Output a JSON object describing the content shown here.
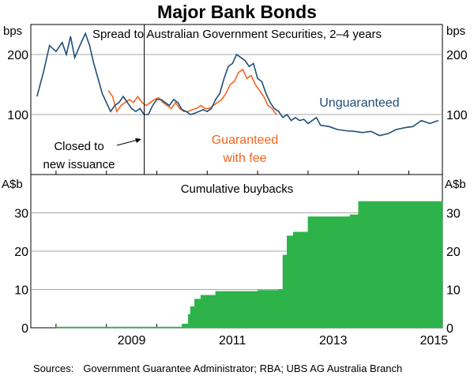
{
  "title": "Major Bank Bonds",
  "sources": {
    "label": "Sources:",
    "text": "Government Guarantee Administrator; RBA; UBS AG Australia Branch"
  },
  "colors": {
    "unguaranteed": "#1f4e79",
    "guaranteed": "#f26522",
    "buybacks": "#2db34a"
  },
  "chart_data": [
    {
      "type": "line",
      "title": "Spread to Australian Government Securities, 2–4 years",
      "ylabel": "bps",
      "ylim": [
        0,
        250
      ],
      "yticks": [
        100,
        200
      ],
      "xlim": [
        "2007-07",
        "2015-09"
      ],
      "grid": true,
      "annotation": {
        "text_line1": "Closed to",
        "text_line2": "new issuance",
        "date": "2009-10"
      },
      "series": [
        {
          "name": "Unguaranteed",
          "label_line1": "Unguaranteed",
          "label_line2": "",
          "color_key": "unguaranteed",
          "points": [
            [
              "2007-08-15",
              130
            ],
            [
              "2007-10-01",
              170
            ],
            [
              "2007-11-15",
              215
            ],
            [
              "2008-01-01",
              205
            ],
            [
              "2008-02-15",
              220
            ],
            [
              "2008-03-15",
              200
            ],
            [
              "2008-04-15",
              230
            ],
            [
              "2008-05-15",
              195
            ],
            [
              "2008-07-01",
              220
            ],
            [
              "2008-08-01",
              235
            ],
            [
              "2008-09-01",
              215
            ],
            [
              "2008-10-01",
              185
            ],
            [
              "2008-11-01",
              160
            ],
            [
              "2008-12-01",
              135
            ],
            [
              "2009-01-01",
              120
            ],
            [
              "2009-02-01",
              105
            ],
            [
              "2009-03-01",
              115
            ],
            [
              "2009-04-01",
              120
            ],
            [
              "2009-05-01",
              130
            ],
            [
              "2009-06-01",
              120
            ],
            [
              "2009-07-01",
              110
            ],
            [
              "2009-08-01",
              105
            ],
            [
              "2009-09-01",
              110
            ],
            [
              "2009-10-01",
              100
            ],
            [
              "2009-11-01",
              100
            ],
            [
              "2009-12-01",
              115
            ],
            [
              "2010-01-01",
              125
            ],
            [
              "2010-02-01",
              125
            ],
            [
              "2010-03-01",
              120
            ],
            [
              "2010-04-01",
              115
            ],
            [
              "2010-05-01",
              125
            ],
            [
              "2010-06-01",
              120
            ],
            [
              "2010-07-01",
              108
            ],
            [
              "2010-08-01",
              105
            ],
            [
              "2010-09-01",
              100
            ],
            [
              "2010-10-01",
              102
            ],
            [
              "2010-11-01",
              105
            ],
            [
              "2010-12-01",
              108
            ],
            [
              "2011-01-01",
              105
            ],
            [
              "2011-02-01",
              110
            ],
            [
              "2011-03-01",
              125
            ],
            [
              "2011-04-01",
              135
            ],
            [
              "2011-05-01",
              160
            ],
            [
              "2011-06-01",
              180
            ],
            [
              "2011-07-01",
              185
            ],
            [
              "2011-08-01",
              200
            ],
            [
              "2011-09-01",
              195
            ],
            [
              "2011-10-01",
              190
            ],
            [
              "2011-11-01",
              180
            ],
            [
              "2011-12-01",
              185
            ],
            [
              "2012-01-01",
              160
            ],
            [
              "2012-02-01",
              155
            ],
            [
              "2012-03-01",
              135
            ],
            [
              "2012-04-01",
              120
            ],
            [
              "2012-05-01",
              110
            ],
            [
              "2012-06-01",
              105
            ],
            [
              "2012-07-01",
              95
            ],
            [
              "2012-08-01",
              100
            ],
            [
              "2012-09-01",
              90
            ],
            [
              "2012-10-01",
              95
            ],
            [
              "2012-11-01",
              90
            ],
            [
              "2012-12-01",
              92
            ],
            [
              "2013-01-01",
              85
            ],
            [
              "2013-03-01",
              95
            ],
            [
              "2013-04-01",
              82
            ],
            [
              "2013-06-01",
              80
            ],
            [
              "2013-08-01",
              75
            ],
            [
              "2013-10-01",
              73
            ],
            [
              "2013-12-01",
              72
            ],
            [
              "2014-02-01",
              70
            ],
            [
              "2014-04-01",
              72
            ],
            [
              "2014-06-01",
              65
            ],
            [
              "2014-08-01",
              68
            ],
            [
              "2014-10-01",
              75
            ],
            [
              "2014-12-01",
              78
            ],
            [
              "2015-02-01",
              80
            ],
            [
              "2015-04-01",
              90
            ],
            [
              "2015-06-01",
              85
            ],
            [
              "2015-08-01",
              90
            ]
          ]
        },
        {
          "name": "Guaranteed with fee",
          "label_line1": "Guaranteed",
          "label_line2": "with fee",
          "color_key": "guaranteed",
          "points": [
            [
              "2009-01-15",
              140
            ],
            [
              "2009-02-15",
              130
            ],
            [
              "2009-03-15",
              105
            ],
            [
              "2009-04-15",
              115
            ],
            [
              "2009-05-15",
              120
            ],
            [
              "2009-06-15",
              125
            ],
            [
              "2009-07-15",
              120
            ],
            [
              "2009-08-15",
              130
            ],
            [
              "2009-09-15",
              120
            ],
            [
              "2009-10-15",
              115
            ],
            [
              "2009-11-15",
              120
            ],
            [
              "2009-12-15",
              125
            ],
            [
              "2010-01-15",
              128
            ],
            [
              "2010-02-15",
              120
            ],
            [
              "2010-03-15",
              115
            ],
            [
              "2010-04-15",
              110
            ],
            [
              "2010-05-15",
              120
            ],
            [
              "2010-06-15",
              110
            ],
            [
              "2010-07-15",
              105
            ],
            [
              "2010-08-15",
              105
            ],
            [
              "2010-09-15",
              108
            ],
            [
              "2010-10-15",
              110
            ],
            [
              "2010-11-15",
              115
            ],
            [
              "2010-12-15",
              110
            ],
            [
              "2011-01-15",
              110
            ],
            [
              "2011-02-15",
              115
            ],
            [
              "2011-03-15",
              120
            ],
            [
              "2011-04-15",
              125
            ],
            [
              "2011-05-15",
              135
            ],
            [
              "2011-06-15",
              150
            ],
            [
              "2011-07-15",
              155
            ],
            [
              "2011-08-15",
              170
            ],
            [
              "2011-09-15",
              175
            ],
            [
              "2011-10-15",
              160
            ],
            [
              "2011-11-15",
              165
            ],
            [
              "2011-12-15",
              150
            ],
            [
              "2012-01-15",
              140
            ],
            [
              "2012-02-15",
              130
            ],
            [
              "2012-03-15",
              115
            ],
            [
              "2012-04-15",
              110
            ],
            [
              "2012-05-15",
              100
            ]
          ]
        }
      ]
    },
    {
      "type": "area",
      "title": "Cumulative buybacks",
      "ylabel": "A$b",
      "ylim": [
        0,
        40
      ],
      "yticks": [
        0,
        10,
        20,
        30
      ],
      "xlim": [
        "2007-07",
        "2015-09"
      ],
      "grid": true,
      "x_tick_labels": [
        "2009",
        "2011",
        "2013",
        "2015"
      ],
      "series": [
        {
          "name": "",
          "color_key": "buybacks",
          "steps": [
            [
              "2008-01-01",
              0.2
            ],
            [
              "2010-07-01",
              1.0
            ],
            [
              "2010-08-15",
              3.5
            ],
            [
              "2010-09-01",
              5.5
            ],
            [
              "2010-10-01",
              7.5
            ],
            [
              "2010-11-15",
              8.5
            ],
            [
              "2011-03-01",
              9.5
            ],
            [
              "2012-01-01",
              9.8
            ],
            [
              "2012-06-01",
              10.0
            ],
            [
              "2012-07-01",
              19.0
            ],
            [
              "2012-08-01",
              24.0
            ],
            [
              "2012-09-15",
              25.0
            ],
            [
              "2013-01-01",
              29.0
            ],
            [
              "2013-11-01",
              29.5
            ],
            [
              "2014-01-01",
              33.0
            ],
            [
              "2015-09-01",
              33.0
            ]
          ]
        }
      ]
    }
  ]
}
